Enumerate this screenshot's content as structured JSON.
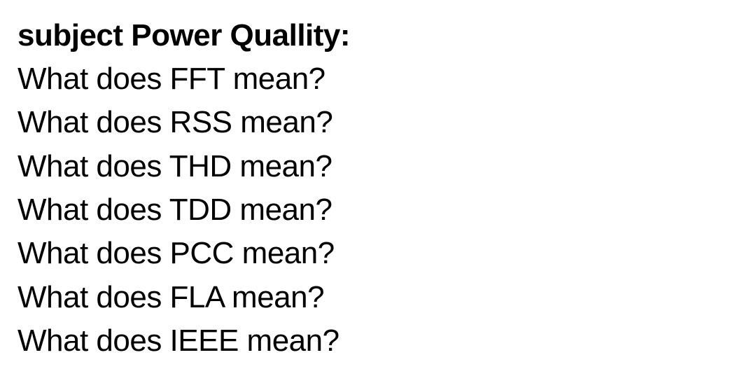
{
  "heading": "subject Power Quallity:",
  "questions": [
    "What does FFT mean?",
    "What does RSS mean?",
    "What does THD mean?",
    "What does TDD mean?",
    "What does PCC mean?",
    "What does FLA mean?",
    "What does IEEE mean?"
  ],
  "colors": {
    "background": "#ffffff",
    "text": "#000000"
  },
  "typography": {
    "heading_fontsize": 44,
    "heading_weight": 700,
    "body_fontsize": 44,
    "body_weight": 400,
    "line_height": 1.42,
    "font_family": "Helvetica Neue"
  }
}
